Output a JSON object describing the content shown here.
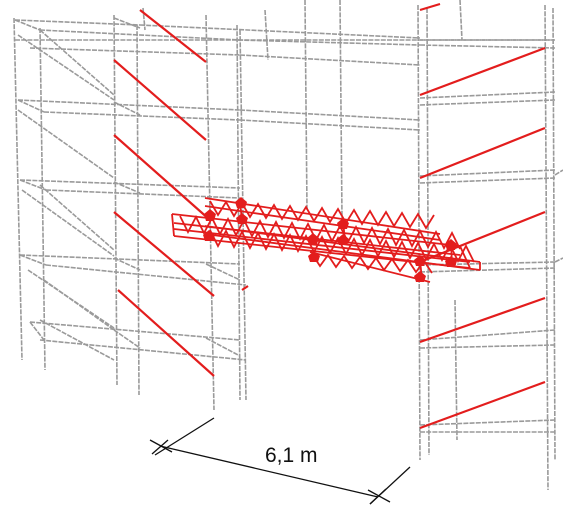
{
  "diagram": {
    "type": "scaffold-bridging-truss-3d",
    "dimension_label": "6,1 m",
    "colors": {
      "background": "#ffffff",
      "scaffold_tube": "#9a9a9a",
      "bracing": "#e31d1d",
      "coupler": "#e31d1d",
      "dimension_line": "#111111"
    },
    "elements": [
      "scaffold-frame-left",
      "scaffold-frame-right",
      "diagonal-bracing",
      "bridging-truss",
      "coupler-nodes",
      "dimension-line"
    ]
  }
}
